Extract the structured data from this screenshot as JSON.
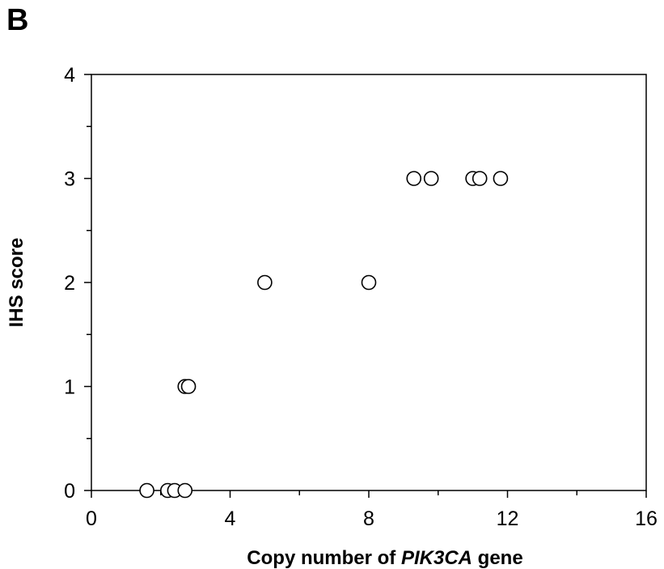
{
  "panel_label": "B",
  "chart_data": {
    "type": "scatter",
    "xlabel_parts": [
      "Copy number of ",
      "PIK3CA",
      " gene"
    ],
    "ylabel": "IHS score",
    "xlim": [
      0,
      16
    ],
    "ylim": [
      0,
      4
    ],
    "xticks": [
      0,
      4,
      8,
      12,
      16
    ],
    "yticks": [
      0,
      1,
      2,
      3,
      4
    ],
    "xticks_minor": [
      2,
      6,
      10,
      14
    ],
    "yticks_minor": [
      0.5,
      1.5,
      2.5,
      3.5
    ],
    "grid": false,
    "marker": "open-circle",
    "points": [
      {
        "x": 1.6,
        "y": 0
      },
      {
        "x": 2.2,
        "y": 0
      },
      {
        "x": 2.4,
        "y": 0
      },
      {
        "x": 2.7,
        "y": 0
      },
      {
        "x": 2.7,
        "y": 1
      },
      {
        "x": 2.8,
        "y": 1
      },
      {
        "x": 5.0,
        "y": 2
      },
      {
        "x": 8.0,
        "y": 2
      },
      {
        "x": 9.3,
        "y": 3
      },
      {
        "x": 9.8,
        "y": 3
      },
      {
        "x": 11.0,
        "y": 3
      },
      {
        "x": 11.2,
        "y": 3
      },
      {
        "x": 11.8,
        "y": 3
      }
    ]
  },
  "colors": {
    "marker_fill": "#ffffff",
    "marker_stroke": "#000000",
    "axis": "#000000"
  }
}
